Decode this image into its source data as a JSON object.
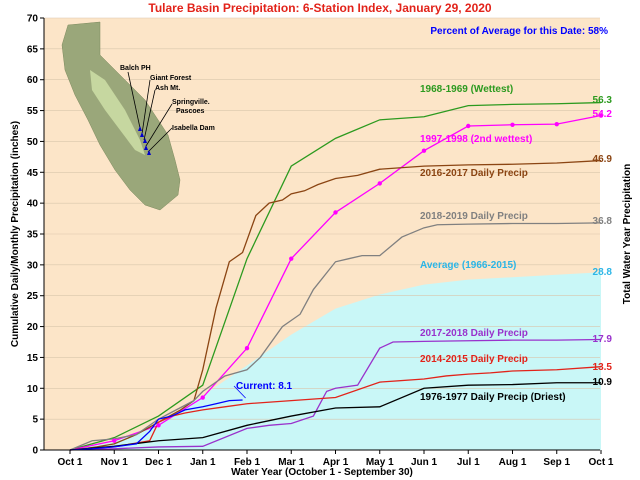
{
  "chart_data": {
    "type": "line",
    "title": "Tulare Basin Precipitation: 6-Station Index, January 29, 2020",
    "subtitle": "Percent of Average for this Date: 58%",
    "xlabel": "Water Year (October 1 - September 30)",
    "ylabel": "Cumulative Daily/Monthly Precipitation (inches)",
    "ylabel_right": "Total Water Year Precipitation",
    "x_tick_labels": [
      "Oct 1",
      "Nov 1",
      "Dec 1",
      "Jan 1",
      "Feb 1",
      "Mar 1",
      "Apr 1",
      "May 1",
      "Jun 1",
      "Jul 1",
      "Aug 1",
      "Sep 1",
      "Oct 1"
    ],
    "y_ticks": [
      0,
      5,
      10,
      15,
      20,
      25,
      30,
      35,
      40,
      45,
      50,
      55,
      60,
      65,
      70
    ],
    "ylim": [
      0,
      70
    ],
    "xlim": [
      0,
      12
    ],
    "grid": "horizontal",
    "series": [
      {
        "name": "Average (1966-2015)",
        "style": "area",
        "color": "#c9f7f7",
        "label_color": "#2bb5e6",
        "end_value": "28.8",
        "x": [
          0,
          1,
          2,
          3,
          4,
          5,
          6,
          7,
          8,
          9,
          10,
          11,
          12
        ],
        "values": [
          0,
          1.3,
          4.3,
          8.8,
          13.7,
          18.7,
          22.9,
          25.2,
          26.8,
          27.6,
          28.0,
          28.4,
          28.8
        ]
      },
      {
        "name": "1968-1969 (Wettest)",
        "color": "#2c9a1f",
        "end_value": "56.3",
        "x": [
          0,
          1,
          2,
          3,
          4,
          5,
          6,
          7,
          8,
          9,
          10,
          11,
          12
        ],
        "values": [
          0,
          2.0,
          5.5,
          10.5,
          31.0,
          46.0,
          50.5,
          53.5,
          54.0,
          55.8,
          56.0,
          56.1,
          56.3
        ]
      },
      {
        "name": "1997-1998  (2nd wettest)",
        "color": "#ff00ff",
        "end_value": "54.2",
        "x": [
          0,
          1,
          2,
          3,
          4,
          5,
          6,
          7,
          8,
          9,
          10,
          11,
          12
        ],
        "values": [
          0,
          1.5,
          4.0,
          8.5,
          16.5,
          31.0,
          38.5,
          43.2,
          48.5,
          52.5,
          52.7,
          52.8,
          54.2
        ]
      },
      {
        "name": "2016-2017 Daily Precip",
        "color": "#8b4513",
        "end_value": "46.9",
        "x": [
          0,
          0.4,
          0.6,
          1,
          1.5,
          2,
          2.5,
          2.8,
          3,
          3.3,
          3.6,
          3.9,
          4.2,
          4.5,
          4.8,
          5,
          5.3,
          5.6,
          6,
          6.5,
          7,
          8,
          9,
          10,
          11,
          12
        ],
        "values": [
          0,
          0.3,
          0.5,
          1.0,
          2.5,
          4.5,
          6.5,
          8.0,
          13.0,
          23.0,
          30.5,
          32.0,
          38.0,
          40.0,
          40.5,
          41.5,
          42.0,
          43.0,
          44.0,
          44.5,
          45.5,
          46.0,
          46.2,
          46.3,
          46.5,
          46.9
        ]
      },
      {
        "name": "2018-2019 Daily Precip",
        "color": "#808080",
        "end_value": "36.8",
        "x": [
          0,
          0.5,
          1,
          1.5,
          2,
          2.4,
          2.8,
          3,
          3.5,
          4,
          4.3,
          4.8,
          5.2,
          5.5,
          6,
          6.3,
          6.6,
          7,
          7.5,
          8,
          8.3,
          9,
          10,
          11,
          12
        ],
        "values": [
          0,
          1.5,
          1.8,
          2.5,
          5.0,
          6.5,
          8.0,
          9.5,
          12.0,
          13.0,
          15.0,
          20.0,
          22.0,
          26.0,
          30.5,
          31.0,
          31.5,
          31.5,
          34.5,
          36.0,
          36.5,
          36.6,
          36.7,
          36.7,
          36.8
        ]
      },
      {
        "name": "2017-2018 Daily Precip",
        "color": "#9932cc",
        "end_value": "17.9",
        "x": [
          0,
          1,
          2,
          3,
          4,
          4.5,
          5,
          5.5,
          5.8,
          6,
          6.5,
          7,
          7.3,
          8,
          9,
          10,
          11,
          12
        ],
        "values": [
          0,
          0.2,
          0.5,
          0.6,
          3.5,
          4.0,
          4.3,
          5.5,
          9.5,
          10.0,
          10.5,
          16.5,
          17.5,
          17.6,
          17.7,
          17.8,
          17.8,
          17.9
        ]
      },
      {
        "name": "2014-2015 Daily Precip",
        "color": "#e2231a",
        "end_value": "13.5",
        "x": [
          0,
          1,
          1.8,
          2,
          2.3,
          2.6,
          3,
          3.5,
          4,
          5,
          6,
          7,
          8,
          8.5,
          9,
          9.5,
          10,
          11,
          12
        ],
        "values": [
          0,
          0.5,
          1.5,
          4.5,
          5.5,
          6.0,
          6.5,
          7.0,
          7.5,
          8.0,
          8.5,
          11.0,
          11.5,
          12.0,
          12.3,
          12.5,
          12.8,
          13.0,
          13.5
        ]
      },
      {
        "name": "1976-1977 Daily Precip (Driest)",
        "color": "#000000",
        "end_value": "10.9",
        "x": [
          0,
          1,
          2,
          3,
          4,
          5,
          6,
          7,
          8,
          9,
          10,
          11,
          12
        ],
        "values": [
          0,
          0.6,
          1.5,
          2.0,
          4.0,
          5.5,
          6.8,
          7.0,
          10.0,
          10.5,
          10.6,
          10.9,
          10.9
        ]
      },
      {
        "name": "Current: 8.1",
        "color": "#0000ff",
        "x": [
          0,
          0.5,
          1,
          1.5,
          1.8,
          2,
          2.3,
          2.6,
          3,
          3.3,
          3.6,
          3.9
        ],
        "values": [
          0,
          0.2,
          0.5,
          1.0,
          3.0,
          5.0,
          5.5,
          6.5,
          7.0,
          7.5,
          8.0,
          8.1
        ]
      }
    ]
  },
  "map": {
    "stations": [
      "Balch PH",
      "Giant Forest",
      "Ash Mt.",
      "Springville.",
      "Pascoes",
      "Isabella Dam"
    ]
  },
  "colors": {
    "background": "#fce5c8",
    "title": "#e2231a",
    "subtitle": "#0000ff"
  }
}
